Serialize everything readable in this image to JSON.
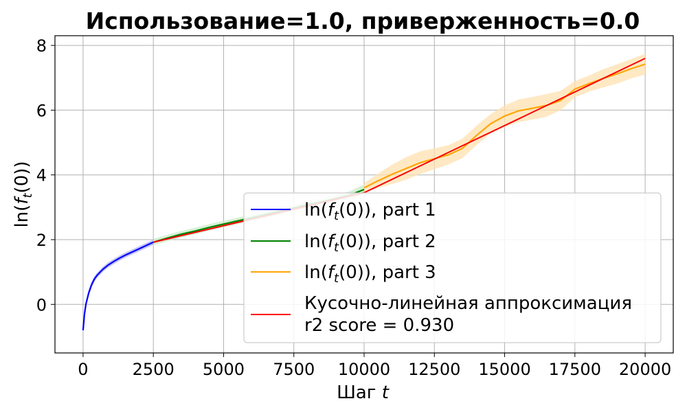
{
  "chart_data": {
    "type": "line",
    "title": "Использование=1.0, приверженность=0.0",
    "xlabel": "Шаг t",
    "xlabel_prefix": "Шаг",
    "xlabel_var": "t",
    "ylabel": "ln(f_t(0))",
    "xlim": [
      -1000,
      21000
    ],
    "ylim": [
      -1.5,
      8.3
    ],
    "xticks": [
      0,
      2500,
      5000,
      7500,
      10000,
      12500,
      15000,
      17500,
      20000
    ],
    "xtick_labels": [
      "0",
      "2500",
      "5000",
      "7500",
      "10000",
      "12500",
      "15000",
      "17500",
      "20000"
    ],
    "yticks": [
      0,
      2,
      4,
      6,
      8
    ],
    "ytick_labels": [
      "0",
      "2",
      "4",
      "6",
      "8"
    ],
    "grid": true,
    "legend_position": "lower-right",
    "series": [
      {
        "name": "ln(f_t(0)), part 1",
        "color": "#0000ff",
        "band_color": "#b0b0f0",
        "x": [
          0,
          50,
          100,
          200,
          300,
          400,
          500,
          700,
          900,
          1100,
          1300,
          1500,
          1700,
          1900,
          2100,
          2300,
          2500
        ],
        "y": [
          -0.8,
          -0.3,
          0.0,
          0.35,
          0.6,
          0.78,
          0.9,
          1.08,
          1.22,
          1.33,
          1.43,
          1.52,
          1.6,
          1.68,
          1.76,
          1.84,
          1.92
        ],
        "band": [
          0.12,
          0.12,
          0.1,
          0.1,
          0.09,
          0.09,
          0.08,
          0.08,
          0.08,
          0.08,
          0.08,
          0.08,
          0.08,
          0.08,
          0.08,
          0.08,
          0.08
        ]
      },
      {
        "name": "ln(f_t(0)), part 2",
        "color": "#008000",
        "band_color": "#c8ecc8",
        "x": [
          2500,
          3000,
          3500,
          4000,
          4500,
          5000,
          5500,
          6000,
          6500,
          7000,
          7500,
          8000,
          8500,
          9000,
          9500,
          10000
        ],
        "y": [
          1.92,
          2.05,
          2.17,
          2.27,
          2.38,
          2.48,
          2.58,
          2.68,
          2.78,
          2.88,
          2.98,
          3.08,
          3.17,
          3.27,
          3.38,
          3.55
        ],
        "band": [
          0.1,
          0.1,
          0.1,
          0.1,
          0.1,
          0.1,
          0.1,
          0.1,
          0.1,
          0.1,
          0.1,
          0.1,
          0.1,
          0.1,
          0.12,
          0.15
        ]
      },
      {
        "name": "ln(f_t(0)), part 3",
        "color": "#ffa500",
        "band_color": "#ffe2b0",
        "x": [
          10000,
          10500,
          11000,
          11500,
          12000,
          12500,
          13000,
          13500,
          14000,
          14500,
          15000,
          15500,
          16000,
          16500,
          17000,
          17500,
          18000,
          18500,
          19000,
          19500,
          20000
        ],
        "y": [
          3.6,
          3.82,
          4.02,
          4.2,
          4.38,
          4.5,
          4.62,
          4.82,
          5.22,
          5.58,
          5.82,
          5.98,
          6.06,
          6.15,
          6.3,
          6.65,
          6.82,
          6.98,
          7.12,
          7.28,
          7.42
        ],
        "band": [
          0.15,
          0.22,
          0.3,
          0.35,
          0.35,
          0.32,
          0.3,
          0.3,
          0.3,
          0.3,
          0.33,
          0.35,
          0.35,
          0.35,
          0.3,
          0.25,
          0.25,
          0.28,
          0.3,
          0.3,
          0.32
        ]
      },
      {
        "name": "Кусочно-линейная аппроксимация",
        "name_line2": "r2 score = 0.930",
        "color": "#ff0000",
        "x": [
          2500,
          10000,
          20000
        ],
        "y": [
          1.92,
          3.45,
          7.6
        ]
      }
    ],
    "legend": [
      {
        "label_prefix": "ln(",
        "label_italic": "f",
        "label_sub": "t",
        "label_suffix": "(0)), part 1"
      },
      {
        "label_prefix": "ln(",
        "label_italic": "f",
        "label_sub": "t",
        "label_suffix": "(0)), part 2"
      },
      {
        "label_prefix": "ln(",
        "label_italic": "f",
        "label_sub": "t",
        "label_suffix": "(0)), part 3"
      },
      {
        "label_line1": "Кусочно-линейная аппроксимация",
        "label_line2": "r2 score = 0.930"
      }
    ]
  }
}
